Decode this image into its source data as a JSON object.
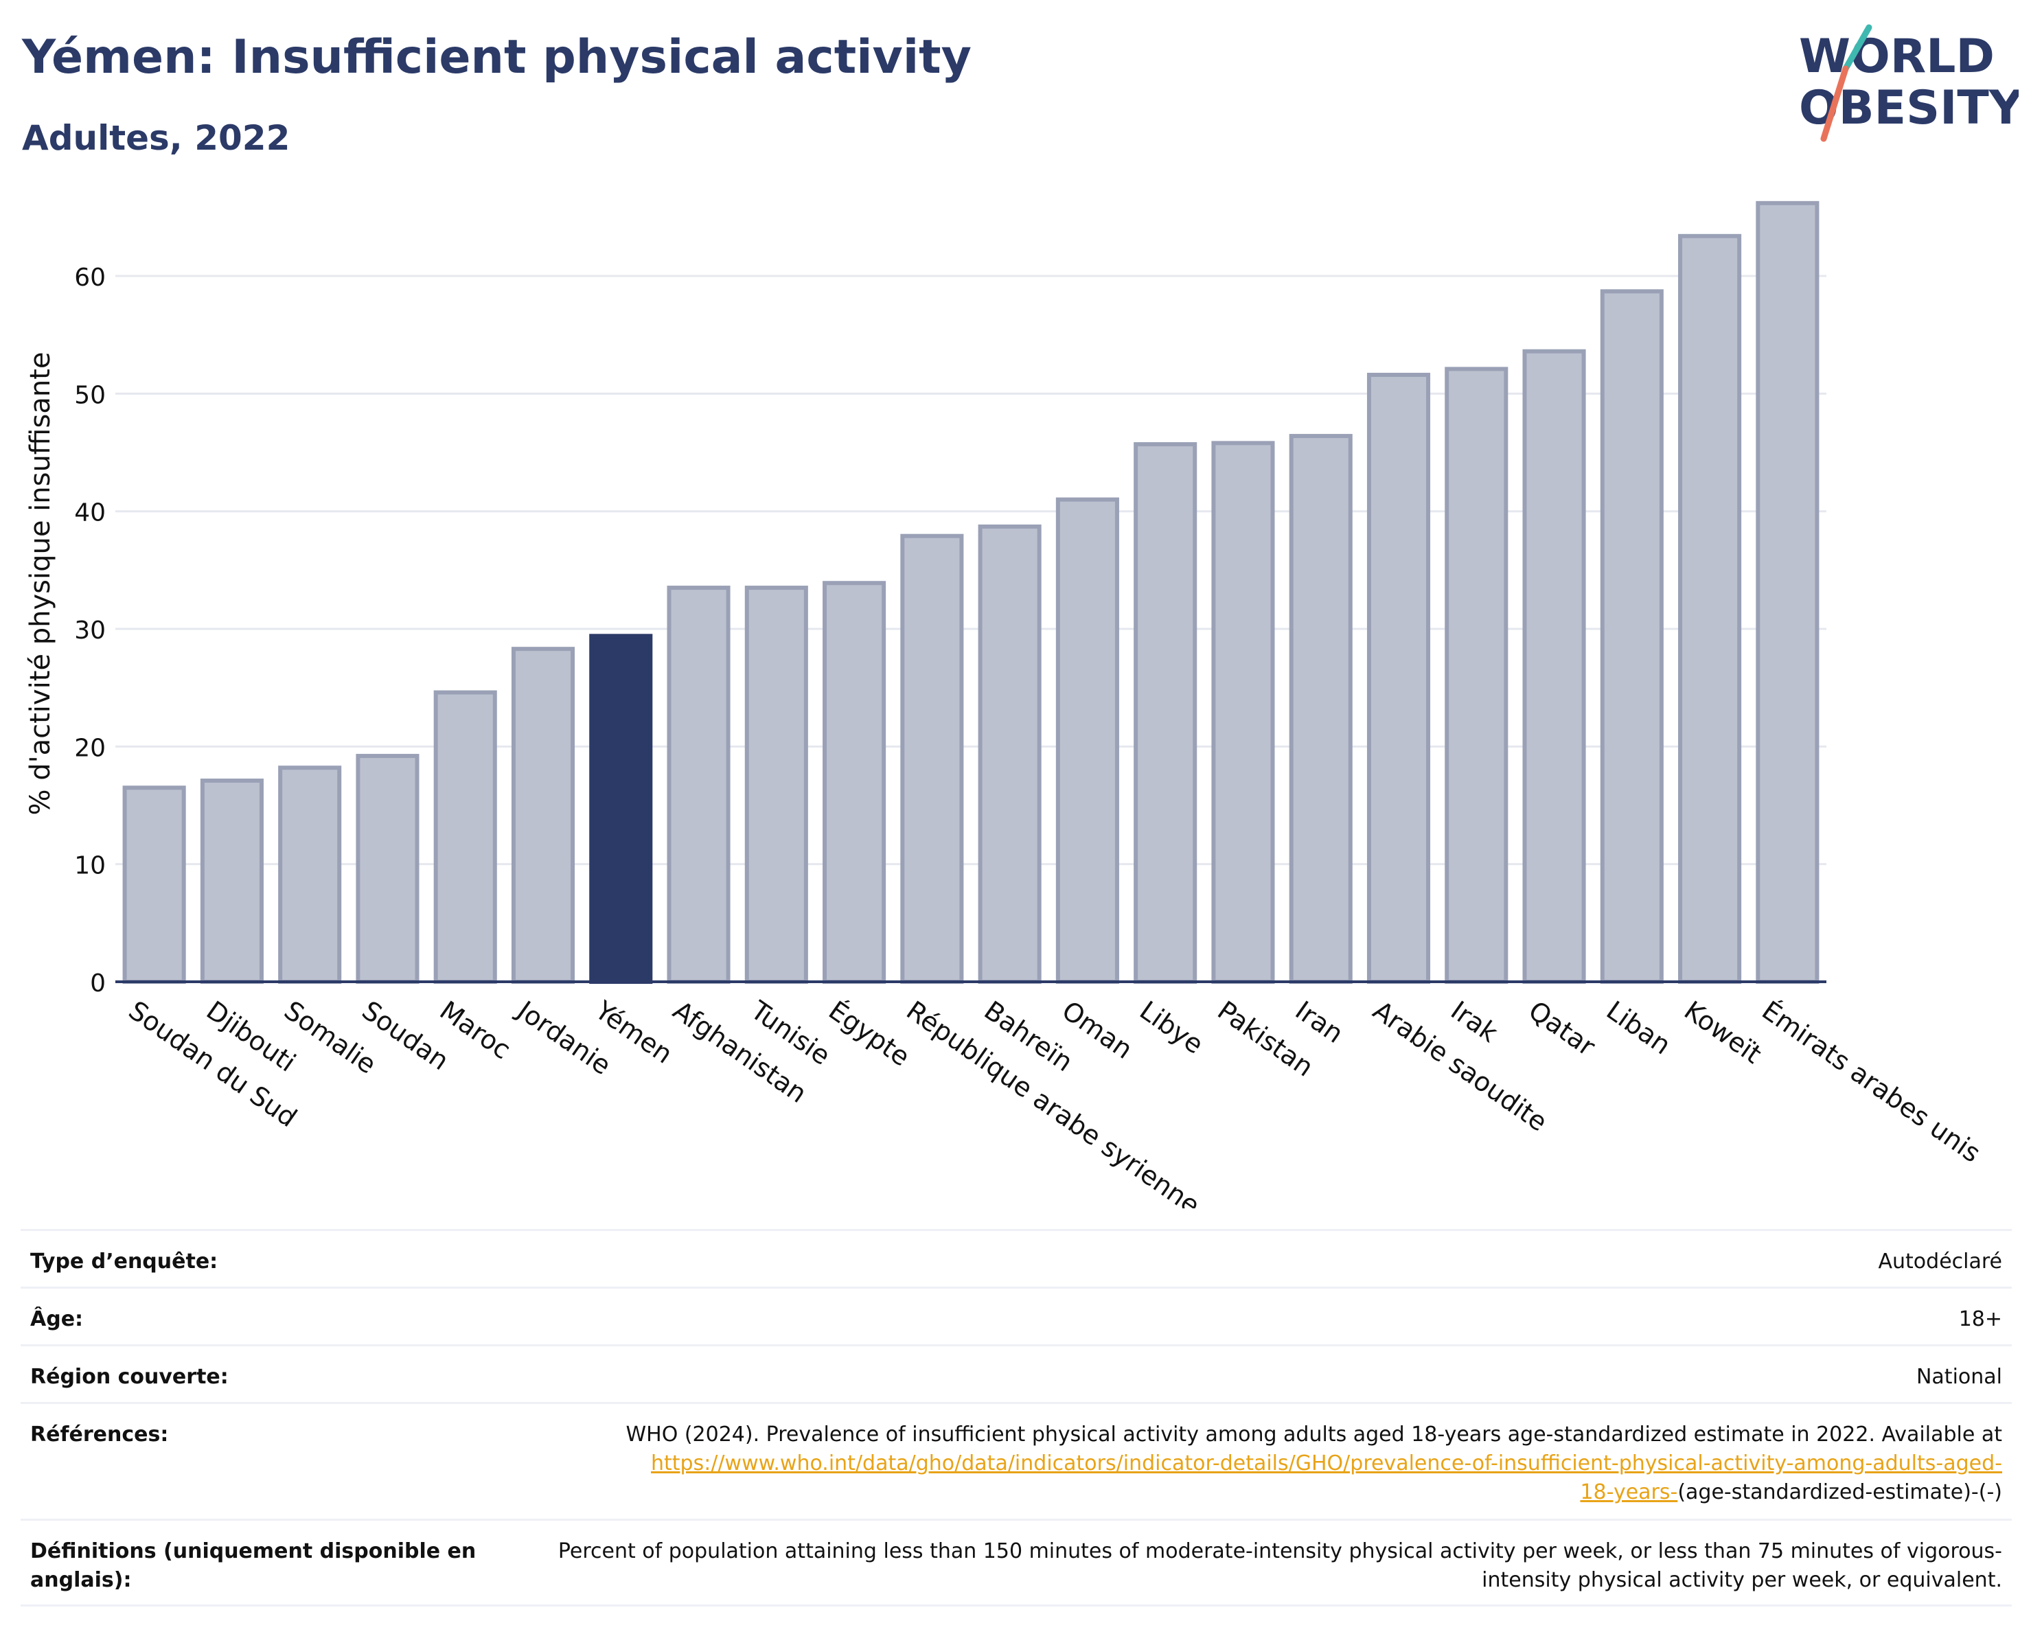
{
  "header": {
    "title": "Yémen: Insufficient physical activity",
    "subtitle": "Adultes, 2022",
    "logo_text_line1": "WORLD",
    "logo_text_line2": "OBESITY"
  },
  "colors": {
    "highlight_bar": "#2b3a67",
    "other_bar": "#bcc1cf",
    "other_bar_border": "#9aa1b6",
    "title": "#2b3a67",
    "link": "#e8a317",
    "logo_teal": "#3fb8b0",
    "logo_coral": "#e8735a"
  },
  "chart_data": {
    "type": "bar",
    "title": "",
    "xlabel": "",
    "ylabel": "% d'activité physique insuffisante",
    "ylim": [
      0,
      68
    ],
    "yticks": [
      0,
      10,
      20,
      30,
      40,
      50,
      60
    ],
    "grid": true,
    "highlight": "Yémen",
    "categories": [
      "Soudan du Sud",
      "Djibouti",
      "Somalie",
      "Soudan",
      "Maroc",
      "Jordanie",
      "Yémen",
      "Afghanistan",
      "Tunisie",
      "Égypte",
      "République arabe syrienne",
      "Bahreïn",
      "Oman",
      "Libye",
      "Pakistan",
      "Iran",
      "Arabie saoudite",
      "Irak",
      "Qatar",
      "Liban",
      "Koweït",
      "Émirats arabes unis"
    ],
    "values": [
      16.5,
      17.1,
      18.2,
      19.2,
      24.6,
      28.3,
      29.4,
      33.5,
      33.5,
      33.9,
      37.9,
      38.7,
      41.0,
      45.7,
      45.8,
      46.4,
      51.6,
      52.1,
      53.6,
      58.7,
      63.4,
      66.2
    ]
  },
  "info": {
    "rows": [
      {
        "label": "Type d’enquête:",
        "value": "Autodéclaré"
      },
      {
        "label": "Âge:",
        "value": "18+"
      },
      {
        "label": "Région couverte:",
        "value": "National"
      }
    ],
    "references": {
      "label": "Références:",
      "text_before": "WHO (2024). Prevalence of insufficient physical activity among adults aged 18-years age-standardized estimate in 2022. Available at",
      "link_line1": "https://www.who.int/data/gho/data/indicators/indicator-details/GHO/prevalence-of-insufficient-physical-activity-among-adults-aged-",
      "link_line2": "18-years-",
      "text_after": "(age-standardized-estimate)-(-)"
    },
    "definitions": {
      "label": "Définitions (uniquement disponible en anglais):",
      "value": "Percent of population attaining less than 150 minutes of moderate-intensity physical activity per week, or less than 75 minutes of vigorous-intensity physical activity per week, or equivalent."
    }
  }
}
